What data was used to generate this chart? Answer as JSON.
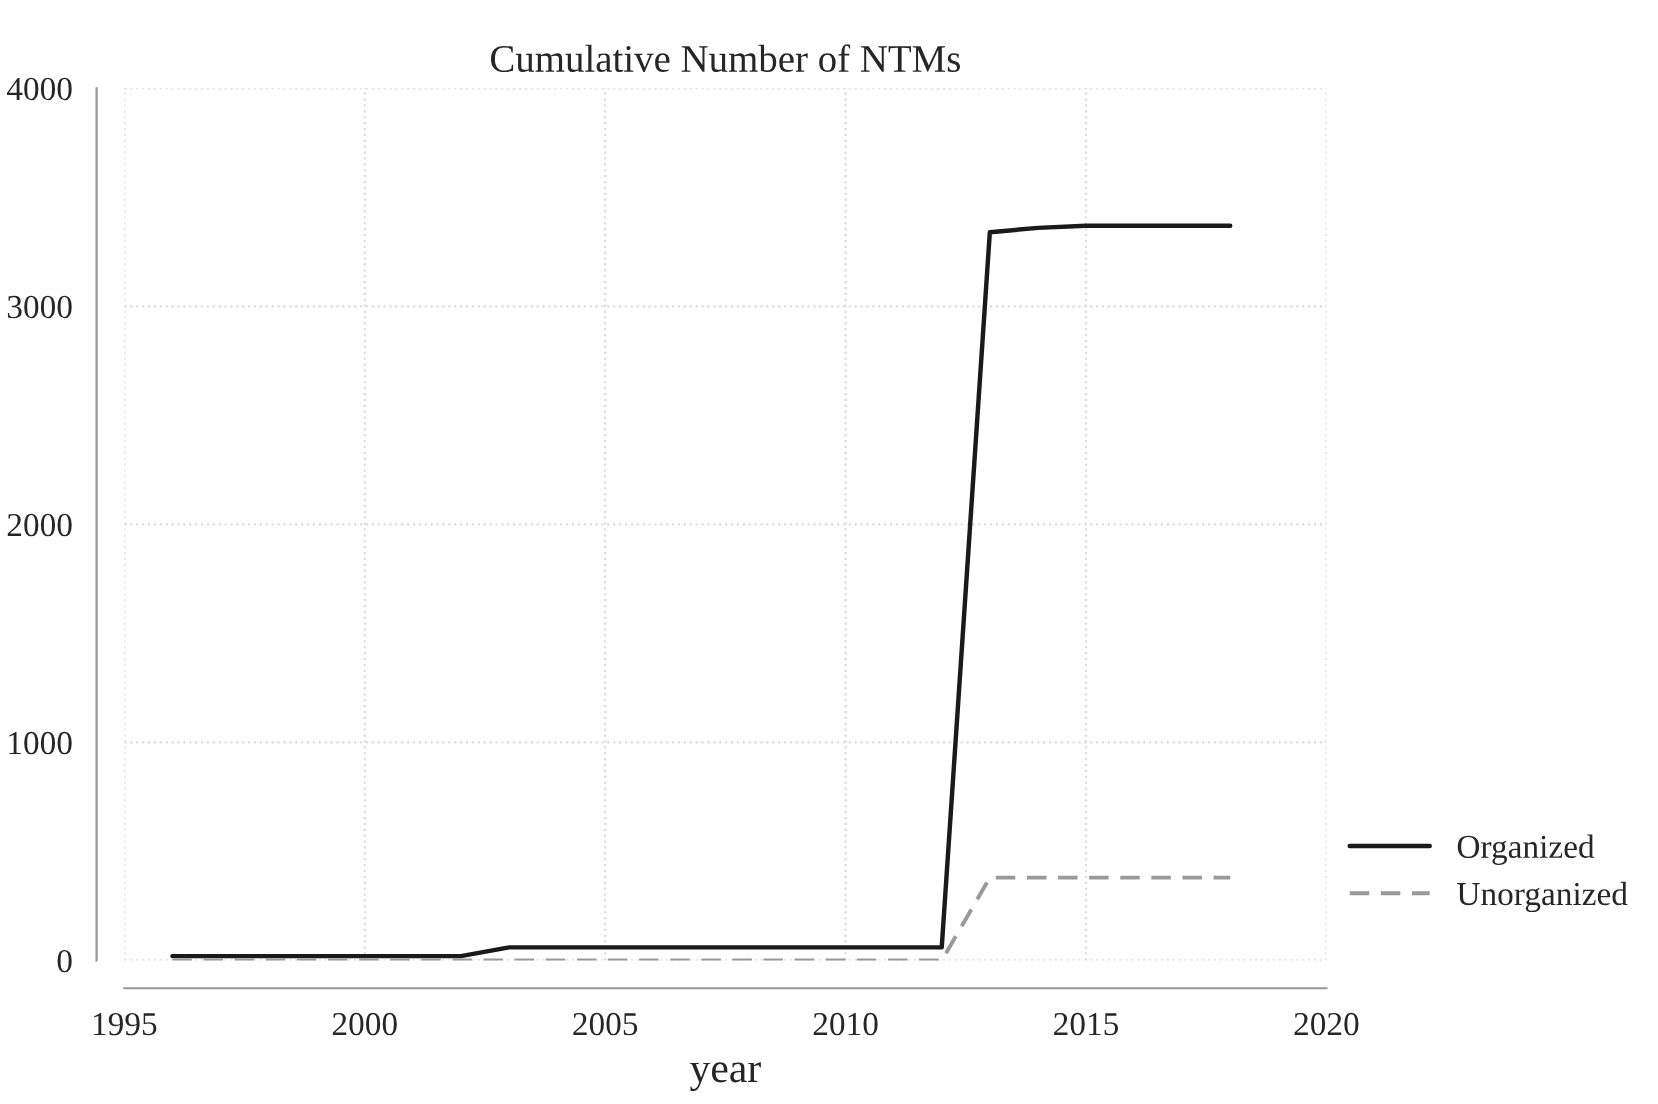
{
  "chart_data": {
    "type": "line",
    "title": "Cumulative Number of NTMs",
    "xlabel": "year",
    "x": [
      1996,
      1997,
      1998,
      1999,
      2000,
      2001,
      2002,
      2003,
      2004,
      2005,
      2006,
      2007,
      2008,
      2009,
      2010,
      2011,
      2012,
      2013,
      2014,
      2015,
      2016,
      2017,
      2018
    ],
    "series": [
      {
        "name": "Organized",
        "color": "#1a1a1a",
        "line_style": "solid",
        "values": [
          20,
          20,
          20,
          20,
          20,
          20,
          20,
          60,
          60,
          60,
          60,
          60,
          60,
          60,
          60,
          60,
          60,
          3340,
          3360,
          3370,
          3370,
          3370,
          3370
        ]
      },
      {
        "name": "Unorganized",
        "color": "#999999",
        "line_style": "dashed",
        "values": [
          0,
          0,
          0,
          0,
          0,
          0,
          0,
          0,
          0,
          0,
          0,
          0,
          0,
          0,
          0,
          0,
          0,
          380,
          380,
          380,
          380,
          380,
          380
        ]
      }
    ],
    "xlim": [
      1995,
      2020
    ],
    "xticks": [
      1995,
      2000,
      2005,
      2010,
      2015,
      2020
    ],
    "ylim": [
      0,
      4000
    ],
    "yticks": [
      0,
      1000,
      2000,
      3000,
      4000
    ],
    "grid": true,
    "legend": "right",
    "marker": "none"
  }
}
